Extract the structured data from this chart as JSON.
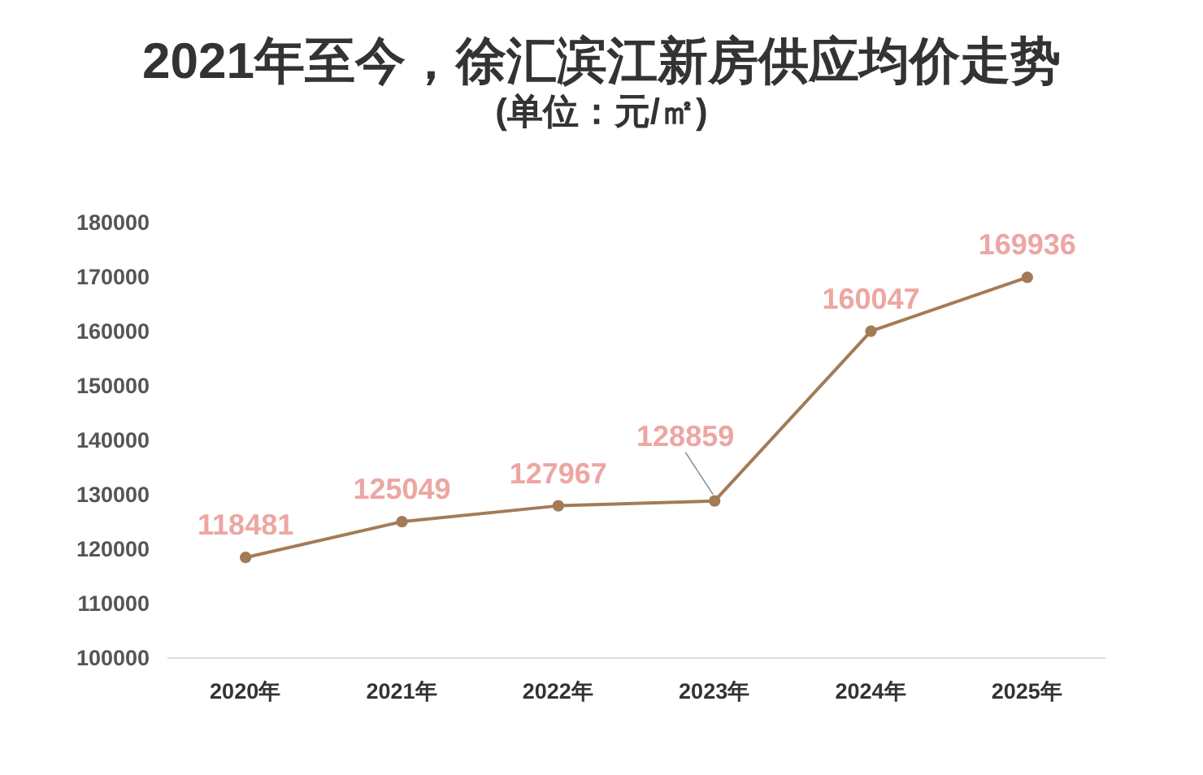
{
  "chart_data": {
    "type": "line",
    "title": "2021年至今，徐汇滨江新房供应均价走势",
    "subtitle": "(单位：元/㎡)",
    "categories": [
      "2020年",
      "2021年",
      "2022年",
      "2023年",
      "2024年",
      "2025年"
    ],
    "series": [
      {
        "color": "#a47b57",
        "values": [
          118481,
          125049,
          127967,
          128859,
          160047,
          169936
        ]
      }
    ],
    "ylim": [
      100000,
      180000
    ],
    "yticks": [
      100000,
      110000,
      120000,
      130000,
      140000,
      150000,
      160000,
      170000,
      180000
    ],
    "marker": "circle",
    "data_labels": true
  }
}
